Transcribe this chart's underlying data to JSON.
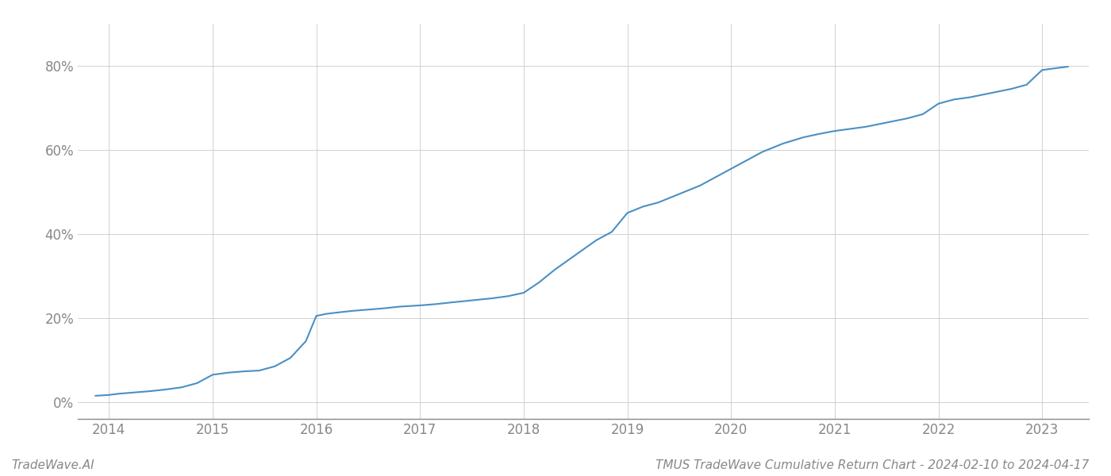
{
  "title": "TMUS TradeWave Cumulative Return Chart - 2024-02-10 to 2024-04-17",
  "watermark": "TradeWave.AI",
  "line_color": "#4a90c4",
  "background_color": "#ffffff",
  "grid_color": "#cccccc",
  "x_labels": [
    "2014",
    "2015",
    "2016",
    "2017",
    "2018",
    "2019",
    "2020",
    "2021",
    "2022",
    "2023"
  ],
  "y_ticks": [
    0,
    20,
    40,
    60,
    80
  ],
  "xlim": [
    2013.7,
    2023.45
  ],
  "ylim": [
    -4,
    90
  ],
  "data_x": [
    2013.87,
    2014.0,
    2014.1,
    2014.25,
    2014.4,
    2014.55,
    2014.7,
    2014.85,
    2015.0,
    2015.15,
    2015.3,
    2015.45,
    2015.6,
    2015.75,
    2015.9,
    2016.0,
    2016.1,
    2016.2,
    2016.35,
    2016.5,
    2016.65,
    2016.8,
    2017.0,
    2017.15,
    2017.3,
    2017.5,
    2017.7,
    2017.85,
    2018.0,
    2018.15,
    2018.3,
    2018.5,
    2018.7,
    2018.85,
    2019.0,
    2019.15,
    2019.3,
    2019.5,
    2019.7,
    2019.85,
    2020.0,
    2020.15,
    2020.3,
    2020.5,
    2020.7,
    2020.85,
    2021.0,
    2021.15,
    2021.3,
    2021.5,
    2021.7,
    2021.85,
    2022.0,
    2022.15,
    2022.3,
    2022.5,
    2022.7,
    2022.85,
    2023.0,
    2023.15,
    2023.25
  ],
  "data_y": [
    1.5,
    1.7,
    2.0,
    2.3,
    2.6,
    3.0,
    3.5,
    4.5,
    6.5,
    7.0,
    7.3,
    7.5,
    8.5,
    10.5,
    14.5,
    20.5,
    21.0,
    21.3,
    21.7,
    22.0,
    22.3,
    22.7,
    23.0,
    23.3,
    23.7,
    24.2,
    24.7,
    25.2,
    26.0,
    28.5,
    31.5,
    35.0,
    38.5,
    40.5,
    45.0,
    46.5,
    47.5,
    49.5,
    51.5,
    53.5,
    55.5,
    57.5,
    59.5,
    61.5,
    63.0,
    63.8,
    64.5,
    65.0,
    65.5,
    66.5,
    67.5,
    68.5,
    71.0,
    72.0,
    72.5,
    73.5,
    74.5,
    75.5,
    79.0,
    79.5,
    79.8
  ],
  "title_fontsize": 11,
  "watermark_fontsize": 11,
  "tick_fontsize": 12,
  "tick_color": "#888888",
  "spine_color": "#888888"
}
